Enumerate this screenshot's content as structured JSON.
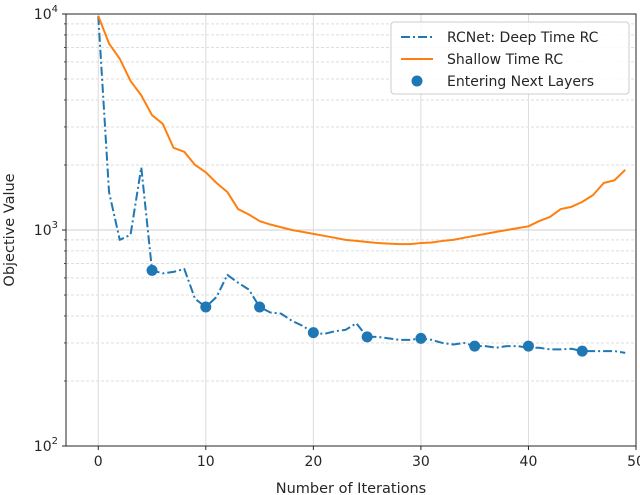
{
  "chart_data": {
    "type": "line",
    "xlabel": "Number of Iterations",
    "ylabel": "Objective Value",
    "yscale": "log",
    "xlim": [
      -3,
      50
    ],
    "ylim": [
      100,
      10000
    ],
    "xticks": [
      0,
      10,
      20,
      30,
      40,
      50
    ],
    "yticks": [
      {
        "value": 100,
        "base": "10",
        "exp": "2"
      },
      {
        "value": 1000,
        "base": "10",
        "exp": "3"
      },
      {
        "value": 10000,
        "base": "10",
        "exp": "4"
      }
    ],
    "grid": true,
    "legend_position": "top-right",
    "series": [
      {
        "name": "RCNet: Deep Time RC",
        "style": "dashdot",
        "color": "#1f77b4",
        "x": [
          0,
          1,
          2,
          3,
          4,
          5,
          6,
          7,
          8,
          9,
          10,
          11,
          12,
          13,
          14,
          15,
          16,
          17,
          18,
          19,
          20,
          21,
          22,
          23,
          24,
          25,
          26,
          27,
          28,
          29,
          30,
          31,
          32,
          33,
          34,
          35,
          36,
          37,
          38,
          39,
          40,
          41,
          42,
          43,
          44,
          45,
          46,
          47,
          48,
          49
        ],
        "values": [
          9800,
          1500,
          900,
          950,
          1950,
          650,
          630,
          640,
          660,
          480,
          440,
          490,
          620,
          570,
          530,
          440,
          415,
          410,
          380,
          360,
          335,
          330,
          340,
          345,
          370,
          320,
          320,
          315,
          310,
          310,
          315,
          310,
          300,
          295,
          300,
          290,
          290,
          285,
          290,
          290,
          285,
          285,
          280,
          280,
          282,
          275,
          275,
          275,
          275,
          270
        ]
      },
      {
        "name": "Shallow Time RC",
        "style": "solid",
        "color": "#ff7f0e",
        "x": [
          0,
          1,
          2,
          3,
          4,
          5,
          6,
          7,
          8,
          9,
          10,
          11,
          12,
          13,
          14,
          15,
          16,
          17,
          18,
          19,
          20,
          21,
          22,
          23,
          24,
          25,
          26,
          27,
          28,
          29,
          30,
          31,
          32,
          33,
          34,
          35,
          36,
          37,
          38,
          39,
          40,
          41,
          42,
          43,
          44,
          45,
          46,
          47,
          48,
          49
        ],
        "values": [
          9800,
          7300,
          6200,
          4900,
          4200,
          3400,
          3100,
          2400,
          2300,
          2000,
          1850,
          1650,
          1500,
          1250,
          1180,
          1100,
          1060,
          1030,
          1000,
          980,
          960,
          940,
          920,
          900,
          890,
          880,
          870,
          865,
          860,
          860,
          870,
          875,
          890,
          900,
          920,
          940,
          960,
          980,
          1000,
          1020,
          1040,
          1100,
          1150,
          1250,
          1280,
          1350,
          1450,
          1650,
          1700,
          1900
        ]
      },
      {
        "name": "Entering Next Layers",
        "style": "markers",
        "color": "#1f77b4",
        "x": [
          5,
          10,
          15,
          20,
          25,
          30,
          35,
          40,
          45
        ],
        "values": [
          650,
          440,
          440,
          335,
          320,
          315,
          290,
          290,
          275
        ]
      }
    ]
  }
}
